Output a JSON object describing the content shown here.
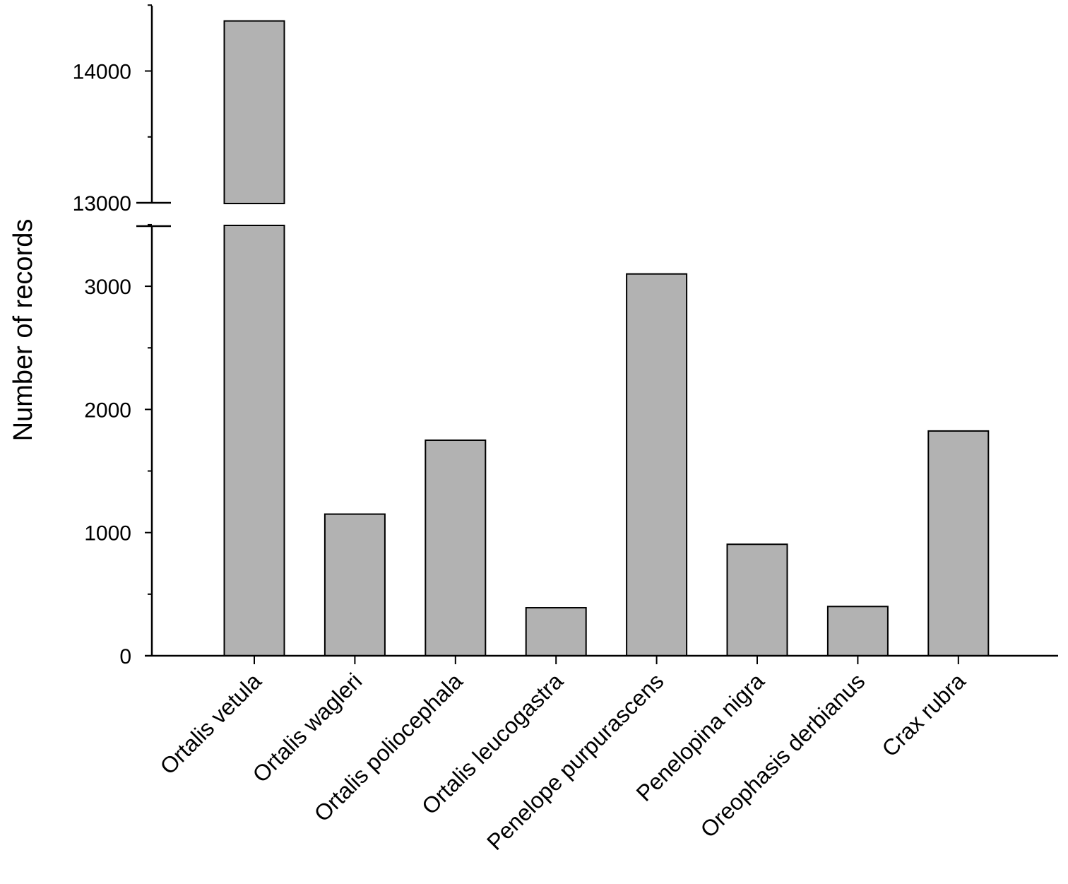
{
  "chart_data": {
    "type": "bar",
    "title": "",
    "xlabel": "",
    "ylabel": "Number of records",
    "categories": [
      "Ortalis vetula",
      "Ortalis wagleri",
      "Ortalis poliocephala",
      "Ortalis leucogastra",
      "Penelope purpurascens",
      "Penelopina nigra",
      "Oreophasis derbianus",
      "Crax rubra"
    ],
    "values": [
      14380,
      1150,
      1750,
      390,
      3100,
      905,
      400,
      1825
    ],
    "axis_break": {
      "lower_range": [
        0,
        3500
      ],
      "upper_range": [
        13000,
        14500
      ]
    },
    "y_ticks_lower": [
      0,
      1000,
      2000,
      3000
    ],
    "y_ticks_upper": [
      13000,
      14000
    ],
    "y_tick_labels_lower": [
      "0",
      "1000",
      "2000",
      "3000"
    ],
    "y_tick_labels_upper": [
      "13000",
      "14000"
    ],
    "bar_color": "#b2b2b2",
    "grid": false,
    "legend": "none"
  }
}
